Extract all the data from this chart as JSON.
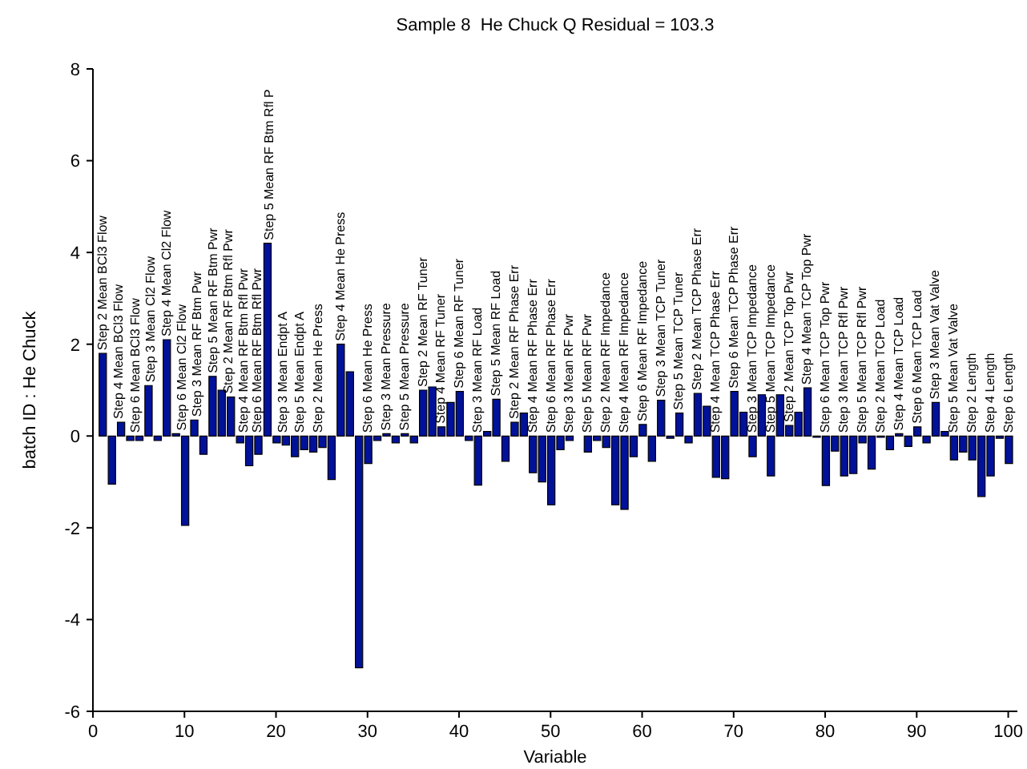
{
  "chart_data": {
    "type": "bar",
    "title": "Sample 8  He Chuck Q Residual = 103.3",
    "xlabel": "Variable",
    "ylabel": "batch ID :  He Chuck",
    "x": [
      1,
      2,
      3,
      4,
      5,
      6,
      7,
      8,
      9,
      10,
      11,
      12,
      13,
      14,
      15,
      16,
      17,
      18,
      19,
      20,
      21,
      22,
      23,
      24,
      25,
      26,
      27,
      28,
      29,
      30,
      31,
      32,
      33,
      34,
      35,
      36,
      37,
      38,
      39,
      40,
      41,
      42,
      43,
      44,
      45,
      46,
      47,
      48,
      49,
      50,
      51,
      52,
      53,
      54,
      55,
      56,
      57,
      58,
      59,
      60,
      61,
      62,
      63,
      64,
      65,
      66,
      67,
      68,
      69,
      70,
      71,
      72,
      73,
      74,
      75,
      76,
      77,
      78,
      79,
      80,
      81,
      82,
      83,
      84,
      85,
      86,
      87,
      88,
      89,
      90,
      91,
      92,
      93,
      94,
      95,
      96,
      97,
      98,
      99,
      100
    ],
    "values": [
      1.8,
      -1.05,
      0.3,
      -0.1,
      -0.1,
      1.1,
      -0.1,
      2.1,
      0.05,
      -1.95,
      0.35,
      -0.4,
      1.3,
      1.0,
      0.85,
      -0.15,
      -0.65,
      -0.4,
      4.2,
      -0.15,
      -0.2,
      -0.45,
      -0.3,
      -0.35,
      -0.25,
      -0.95,
      2.0,
      1.4,
      -5.05,
      -0.6,
      -0.1,
      0.05,
      -0.15,
      0.05,
      -0.15,
      1.0,
      1.07,
      0.2,
      0.73,
      0.97,
      -0.1,
      -1.07,
      0.1,
      0.8,
      -0.55,
      0.3,
      0.5,
      -0.8,
      -1.0,
      -1.5,
      -0.3,
      -0.1,
      0,
      -0.35,
      -0.1,
      -0.25,
      -1.5,
      -1.6,
      -0.45,
      0.25,
      -0.55,
      0.78,
      -0.05,
      0.5,
      -0.15,
      0.93,
      0.65,
      -0.9,
      -0.93,
      0.97,
      0.52,
      -0.45,
      0.9,
      -0.87,
      0.9,
      0.23,
      0.52,
      1.05,
      -0.03,
      -1.08,
      -0.33,
      -0.87,
      -0.82,
      -0.15,
      -0.72,
      -0.03,
      -0.3,
      0.05,
      -0.23,
      0.2,
      -0.15,
      0.73,
      0.1,
      -0.52,
      -0.35,
      -0.52,
      -1.32,
      -0.87,
      -0.05,
      -0.6
    ],
    "color": "#00129a",
    "xlim": [
      0,
      101
    ],
    "xticks": [
      0,
      10,
      20,
      30,
      40,
      50,
      60,
      70,
      80,
      90,
      100
    ],
    "ylim": [
      -6,
      8
    ],
    "yticks": [
      -6,
      -4,
      -2,
      0,
      2,
      4,
      6,
      8
    ],
    "annotations": [
      {
        "text": "Step 2 Mean BCl3 Flow",
        "x": 1,
        "y": 1.8
      },
      {
        "text": "Step 4 Mean BCl3 Flow",
        "x": 2.8,
        "y": 0.3
      },
      {
        "text": "Step 6 Mean BCl3 Flow",
        "x": 4.6,
        "y": 0
      },
      {
        "text": "Step 3 Mean Cl2 Flow",
        "x": 6.3,
        "y": 1.1
      },
      {
        "text": "Step 4 Mean Cl2 Flow",
        "x": 8,
        "y": 2.1
      },
      {
        "text": "Step 6 Mean Cl2 Flow",
        "x": 9.7,
        "y": 0.05
      },
      {
        "text": "Step 3 Mean RF Btm Pwr",
        "x": 11.4,
        "y": 0.35
      },
      {
        "text": "Step 5 Mean RF Btm Pwr",
        "x": 13.1,
        "y": 1.3
      },
      {
        "text": "Step 2 Mean RF Btm Rfl Pwr",
        "x": 14.8,
        "y": 0.85
      },
      {
        "text": "Step 4 Mean RF Btm Rfl Pwr",
        "x": 16.4,
        "y": 0
      },
      {
        "text": "Step 6 Mean RF Btm Rfl Pwr",
        "x": 17.9,
        "y": 0
      },
      {
        "text": "Step 5 Mean RF Btm Rfl P",
        "x": 19.2,
        "y": 4.2
      },
      {
        "text": "Step 3 Mean Endpt A",
        "x": 20.7,
        "y": 0
      },
      {
        "text": "Step 5 Mean Endpt A",
        "x": 22.6,
        "y": 0
      },
      {
        "text": "Step 2 Mean He Press",
        "x": 24.6,
        "y": 0
      },
      {
        "text": "Step 4 Mean He Press",
        "x": 27,
        "y": 2.0
      },
      {
        "text": "Step 6 Mean He Press",
        "x": 30,
        "y": 0
      },
      {
        "text": "Step 3 Mean Pressure",
        "x": 32,
        "y": 0.05
      },
      {
        "text": "Step 5 Mean Pressure",
        "x": 34,
        "y": 0.05
      },
      {
        "text": "Step 2 Mean RF Tuner",
        "x": 36,
        "y": 1.0
      },
      {
        "text": "Step 4 Mean RF Tuner",
        "x": 38,
        "y": 0.2
      },
      {
        "text": "Step 6 Mean RF Tuner",
        "x": 40,
        "y": 0.97
      },
      {
        "text": "Step 3 Mean RF Load",
        "x": 42,
        "y": 0
      },
      {
        "text": "Step 5 Mean RF Load",
        "x": 44,
        "y": 0.8
      },
      {
        "text": "Step 2 Mean RF Phase Err",
        "x": 46,
        "y": 0.3
      },
      {
        "text": "Step 4 Mean RF Phase Err",
        "x": 48,
        "y": 0
      },
      {
        "text": "Step 6 Mean RF Phase Err",
        "x": 50,
        "y": 0
      },
      {
        "text": "Step 3 Mean RF Pwr",
        "x": 52,
        "y": 0
      },
      {
        "text": "Step 5 Mean RF Pwr",
        "x": 54,
        "y": 0
      },
      {
        "text": "Step 2 Mean RF Impedance",
        "x": 56,
        "y": 0
      },
      {
        "text": "Step 4 Mean RF Impedance",
        "x": 58,
        "y": 0
      },
      {
        "text": "Step 6 Mean RF Impedance",
        "x": 60,
        "y": 0.25
      },
      {
        "text": "Step 3 Mean TCP Tuner",
        "x": 62,
        "y": 0.78
      },
      {
        "text": "Step 5 Mean TCP Tuner",
        "x": 64,
        "y": 0.5
      },
      {
        "text": "Step 2 Mean TCP Phase Err",
        "x": 66,
        "y": 0.93
      },
      {
        "text": "Step 4 Mean TCP Phase Err",
        "x": 68,
        "y": 0
      },
      {
        "text": "Step 6 Mean TCP Phase Err",
        "x": 70,
        "y": 0.97
      },
      {
        "text": "Step 3 Mean TCP Impedance",
        "x": 72,
        "y": 0
      },
      {
        "text": "Step 5 Mean TCP Impedance",
        "x": 74,
        "y": 0
      },
      {
        "text": "Step 2 Mean TCP Top Pwr",
        "x": 76,
        "y": 0.23
      },
      {
        "text": "Step 4 Mean TCP Top Pwr",
        "x": 78,
        "y": 1.05
      },
      {
        "text": "Step 6 Mean TCP Top Pwr",
        "x": 80,
        "y": 0
      },
      {
        "text": "Step 3 Mean TCP Rfl Pwr",
        "x": 82,
        "y": 0
      },
      {
        "text": "Step 5 Mean TCP Rfl Pwr",
        "x": 84,
        "y": 0
      },
      {
        "text": "Step 2 Mean TCP Load",
        "x": 86,
        "y": 0
      },
      {
        "text": "Step 4 Mean TCP Load",
        "x": 88,
        "y": 0.05
      },
      {
        "text": "Step 6 Mean TCP Load",
        "x": 90,
        "y": 0.2
      },
      {
        "text": "Step 3 Mean Vat Valve",
        "x": 92,
        "y": 0.73
      },
      {
        "text": "Step 5 Mean Vat Valve",
        "x": 94,
        "y": 0
      },
      {
        "text": "Step 2 Length",
        "x": 96,
        "y": 0
      },
      {
        "text": "Step 4 Length",
        "x": 98,
        "y": 0
      },
      {
        "text": "Step 6 Length",
        "x": 100,
        "y": 0
      }
    ]
  }
}
